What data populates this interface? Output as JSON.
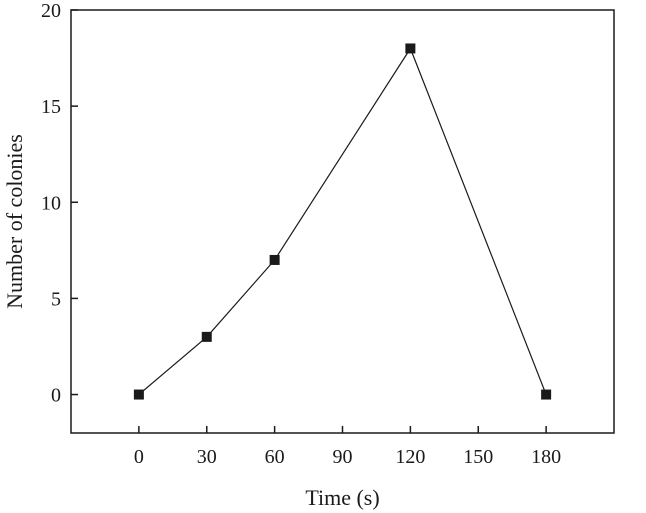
{
  "chart_data": {
    "type": "line",
    "title": "",
    "xlabel": "Time (s)",
    "ylabel": "Number of colonies",
    "x": [
      0,
      30,
      60,
      120,
      180
    ],
    "series": [
      {
        "values": [
          0,
          3,
          7,
          18,
          0
        ]
      }
    ],
    "xlim": [
      -30,
      210
    ],
    "ylim": [
      -2,
      20
    ],
    "xticks": [
      0,
      30,
      60,
      90,
      120,
      150,
      180
    ],
    "yticks": [
      0,
      5,
      10,
      15,
      20
    ],
    "xtick_labels": [
      "0",
      "30",
      "60",
      "90",
      "120",
      "150",
      "180"
    ],
    "ytick_labels": [
      "0",
      "5",
      "10",
      "15",
      "20"
    ],
    "marker": "square",
    "grid": false,
    "legend": "none",
    "colors": {
      "line": "#1a1a1a",
      "marker": "#1a1a1a",
      "axes": "#1a1a1a"
    }
  }
}
